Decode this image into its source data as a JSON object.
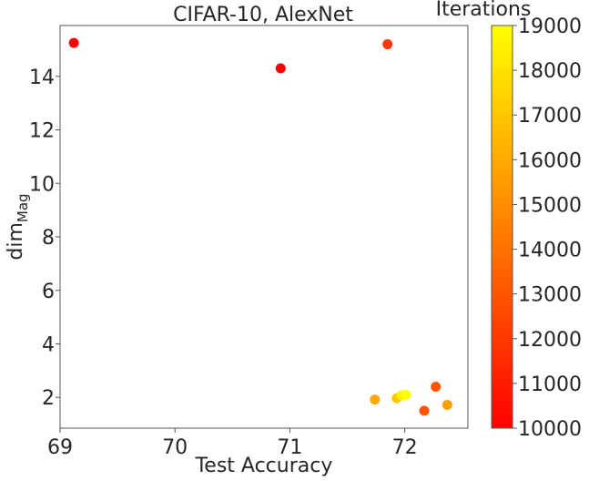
{
  "chart_data": {
    "type": "scatter",
    "title": "CIFAR-10, AlexNet",
    "xlabel": "Test Accuracy",
    "ylabel": "dim",
    "ylabel_subscript": "Mag",
    "xlim": [
      69.0,
      72.55
    ],
    "ylim": [
      0.85,
      15.9
    ],
    "xticks": [
      "69",
      "70",
      "71",
      "72"
    ],
    "xtick_values": [
      69,
      70,
      71,
      72
    ],
    "yticks": [
      "2",
      "4",
      "6",
      "8",
      "10",
      "12",
      "14"
    ],
    "ytick_values": [
      2,
      4,
      6,
      8,
      10,
      12,
      14
    ],
    "grid": false,
    "colormap": "autumn",
    "colorbar": {
      "label": "Iterations",
      "range": [
        10000,
        19000
      ],
      "ticks": [
        "10000",
        "11000",
        "12000",
        "13000",
        "14000",
        "15000",
        "16000",
        "17000",
        "18000",
        "19000"
      ],
      "tick_values": [
        10000,
        11000,
        12000,
        13000,
        14000,
        15000,
        16000,
        17000,
        18000,
        19000
      ],
      "color_low": "#ff0000",
      "color_high": "#ffff00"
    },
    "points": [
      {
        "x": 69.12,
        "y": 15.25,
        "iterations": 10000
      },
      {
        "x": 70.92,
        "y": 14.3,
        "iterations": 10000
      },
      {
        "x": 71.85,
        "y": 15.2,
        "iterations": 12000
      },
      {
        "x": 71.74,
        "y": 1.92,
        "iterations": 16000
      },
      {
        "x": 71.93,
        "y": 1.97,
        "iterations": 17000
      },
      {
        "x": 71.97,
        "y": 2.07,
        "iterations": 18500
      },
      {
        "x": 72.01,
        "y": 2.1,
        "iterations": 19000
      },
      {
        "x": 72.17,
        "y": 1.5,
        "iterations": 13000
      },
      {
        "x": 72.27,
        "y": 2.4,
        "iterations": 13000
      },
      {
        "x": 72.37,
        "y": 1.72,
        "iterations": 15500
      }
    ]
  }
}
